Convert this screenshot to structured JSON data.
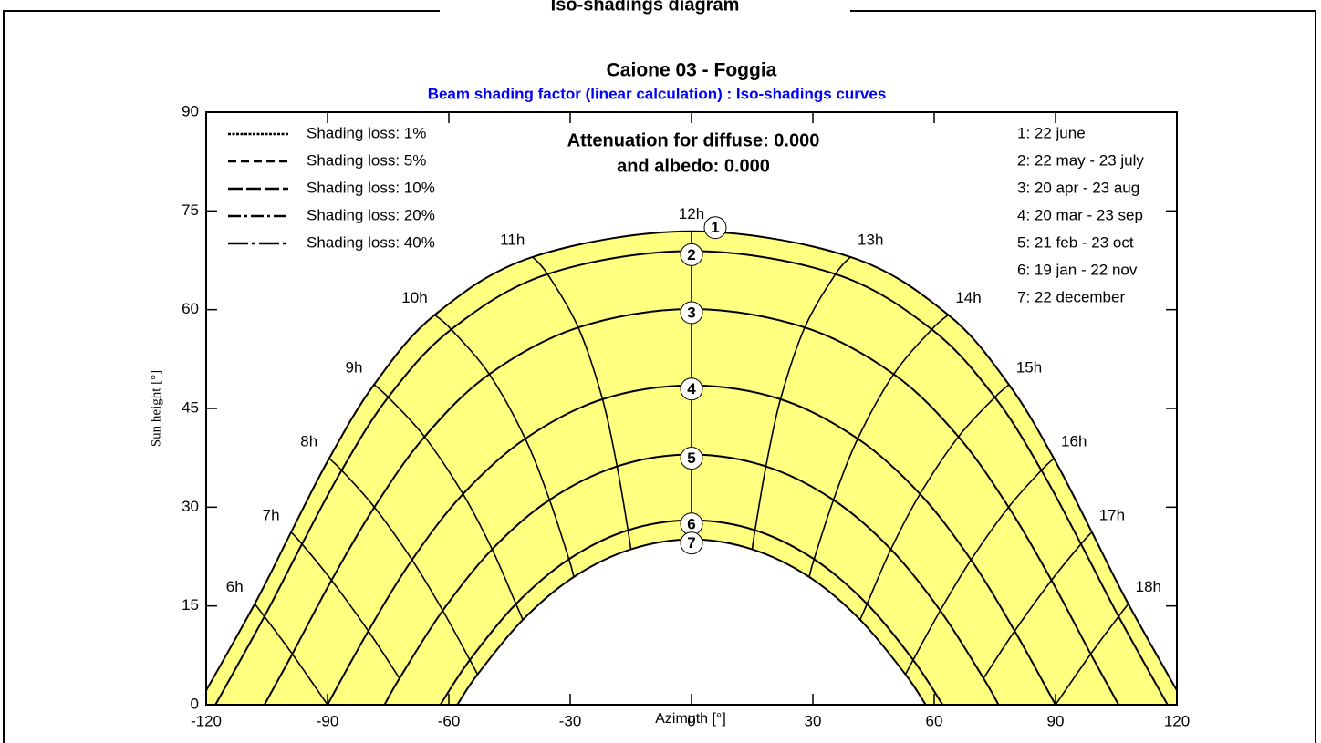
{
  "header": {
    "title": "Iso-shadings diagram"
  },
  "chart_data": {
    "type": "sunpath",
    "title": "Caione 03 - Foggia",
    "subtitle": "Beam shading factor (linear calculation) : Iso-shadings curves",
    "annotations": [
      "Attenuation for diffuse: 0.000",
      "and albedo: 0.000"
    ],
    "xlabel": "Azimuth [°]",
    "ylabel": "Sun height [°]",
    "xlim": [
      -120,
      120
    ],
    "ylim": [
      0,
      90
    ],
    "xticks": [
      -120,
      -90,
      -60,
      -30,
      0,
      30,
      60,
      90,
      120
    ],
    "yticks": [
      0,
      15,
      30,
      45,
      60,
      75,
      90
    ],
    "line_color": "#000000",
    "fill_color": "#ffff80",
    "shading_legend": [
      {
        "name": "Shading loss: 1%",
        "dash": "3,1.5"
      },
      {
        "name": "Shading loss: 5%",
        "dash": "9,5"
      },
      {
        "name": "Shading loss: 10%",
        "dash": "16,4"
      },
      {
        "name": "Shading loss: 20%",
        "dash": "14,4,3,4"
      },
      {
        "name": "Shading loss: 40%",
        "dash": "22,4,4,4"
      }
    ],
    "series": [
      {
        "name": "1: 22 june",
        "marker": "1",
        "x": [
          -122,
          -108.0,
          -99.0,
          -89.6,
          -78.5,
          -63.5,
          -39.3,
          0,
          39.3,
          63.5,
          78.5,
          89.6,
          99.0,
          108.0,
          122
        ],
        "values": [
          0,
          15.3,
          26.2,
          37.4,
          48.6,
          59.2,
          68.0,
          71.9,
          68.0,
          59.2,
          48.6,
          37.4,
          26.2,
          15.3,
          0
        ]
      },
      {
        "name": "2: 22 may - 23 july",
        "marker": "2",
        "x": [
          -117.7,
          -105.6,
          -96.3,
          -86.5,
          -75.0,
          -59.4,
          -35.6,
          0,
          35.6,
          59.4,
          75.0,
          86.5,
          96.3,
          105.6,
          117.7
        ],
        "values": [
          0,
          13.4,
          24.4,
          35.6,
          46.7,
          57.0,
          65.4,
          68.9,
          65.4,
          57.0,
          46.7,
          35.6,
          24.4,
          13.4,
          0
        ]
      },
      {
        "name": "3: 20 apr - 23 aug",
        "marker": "3",
        "x": [
          -105.6,
          -98.7,
          -89.0,
          -78.4,
          -66.0,
          -50.0,
          -28.0,
          0,
          28.0,
          50.0,
          66.0,
          78.4,
          89.0,
          98.7,
          105.6
        ],
        "values": [
          0,
          7.7,
          18.9,
          30.0,
          40.7,
          50.2,
          57.3,
          60.1,
          57.3,
          50.2,
          40.7,
          30.0,
          18.9,
          7.7,
          0
        ]
      },
      {
        "name": "4: 20 mar - 23 sep",
        "marker": "4",
        "x": [
          -90,
          -79.9,
          -69.1,
          -56.5,
          -41.1,
          -22.0,
          0,
          22.0,
          41.1,
          56.5,
          69.1,
          79.9,
          90
        ],
        "values": [
          0,
          11.2,
          22.0,
          32.0,
          40.4,
          46.4,
          48.5,
          46.4,
          40.4,
          32.0,
          22.0,
          11.2,
          0
        ]
      },
      {
        "name": "5: 21 feb - 23 oct",
        "marker": "5",
        "x": [
          -75.9,
          -72.2,
          -61.5,
          -49.3,
          -35.1,
          -18.4,
          0,
          18.4,
          35.1,
          49.3,
          61.5,
          72.2,
          75.9
        ],
        "values": [
          0,
          4.0,
          14.3,
          23.6,
          31.1,
          36.2,
          38.0,
          36.2,
          31.1,
          23.6,
          14.3,
          4.0,
          0
        ]
      },
      {
        "name": "6: 19 jan - 22 nov",
        "marker": "6",
        "x": [
          -62.1,
          -54.8,
          -43.4,
          -30.3,
          -15.7,
          0,
          15.7,
          30.3,
          43.4,
          54.8,
          62.1
        ],
        "values": [
          0,
          6.8,
          15.3,
          22.1,
          26.5,
          28.0,
          26.5,
          22.1,
          15.3,
          6.8,
          0
        ]
      },
      {
        "name": "7: 22 december",
        "marker": "7",
        "x": [
          -57.9,
          -52.9,
          -41.7,
          -29.1,
          -15.0,
          0,
          15.0,
          29.1,
          41.7,
          52.9,
          57.9
        ],
        "values": [
          0,
          4.6,
          12.9,
          19.4,
          23.6,
          25.1,
          23.6,
          19.4,
          12.9,
          4.6,
          0
        ]
      }
    ],
    "hour_lines": [
      {
        "label": "6h",
        "x": [
          -108.0,
          -105.6,
          -98.7,
          -90
        ],
        "values": [
          15.3,
          13.4,
          7.7,
          0
        ]
      },
      {
        "label": "7h",
        "x": [
          -99.0,
          -96.3,
          -89.0,
          -79.9,
          -72.2
        ],
        "values": [
          26.2,
          24.4,
          18.9,
          11.2,
          4.0
        ]
      },
      {
        "label": "8h",
        "x": [
          -89.6,
          -86.5,
          -78.4,
          -69.1,
          -61.5,
          -54.8,
          -52.9
        ],
        "values": [
          37.4,
          35.6,
          30.0,
          22.0,
          14.3,
          6.8,
          4.6
        ]
      },
      {
        "label": "9h",
        "x": [
          -78.5,
          -75.0,
          -66.0,
          -56.5,
          -49.3,
          -43.4,
          -41.7
        ],
        "values": [
          48.6,
          46.7,
          40.7,
          32.0,
          23.6,
          15.3,
          12.9
        ]
      },
      {
        "label": "10h",
        "x": [
          -63.5,
          -59.4,
          -50.0,
          -41.1,
          -35.1,
          -30.3,
          -29.1
        ],
        "values": [
          59.2,
          57.0,
          50.2,
          40.4,
          31.1,
          22.1,
          19.4
        ]
      },
      {
        "label": "11h",
        "x": [
          -39.3,
          -35.6,
          -28.0,
          -22.0,
          -18.4,
          -15.7,
          -15.0
        ],
        "values": [
          68.0,
          65.4,
          57.3,
          46.4,
          36.2,
          26.5,
          23.6
        ]
      },
      {
        "label": "12h",
        "x": [
          0,
          0,
          0,
          0,
          0,
          0,
          0
        ],
        "values": [
          71.9,
          68.9,
          60.1,
          48.5,
          38.0,
          28.0,
          25.1
        ]
      },
      {
        "label": "13h",
        "x": [
          39.3,
          35.6,
          28.0,
          22.0,
          18.4,
          15.7,
          15.0
        ],
        "values": [
          68.0,
          65.4,
          57.3,
          46.4,
          36.2,
          26.5,
          23.6
        ]
      },
      {
        "label": "14h",
        "x": [
          63.5,
          59.4,
          50.0,
          41.1,
          35.1,
          30.3,
          29.1
        ],
        "values": [
          59.2,
          57.0,
          50.2,
          40.4,
          31.1,
          22.1,
          19.4
        ]
      },
      {
        "label": "15h",
        "x": [
          78.5,
          75.0,
          66.0,
          56.5,
          49.3,
          43.4,
          41.7
        ],
        "values": [
          48.6,
          46.7,
          40.7,
          32.0,
          23.6,
          15.3,
          12.9
        ]
      },
      {
        "label": "16h",
        "x": [
          89.6,
          86.5,
          78.4,
          69.1,
          61.5,
          54.8,
          52.9
        ],
        "values": [
          37.4,
          35.6,
          30.0,
          22.0,
          14.3,
          6.8,
          4.6
        ]
      },
      {
        "label": "17h",
        "x": [
          99.0,
          96.3,
          89.0,
          79.9,
          72.2
        ],
        "values": [
          26.2,
          24.4,
          18.9,
          11.2,
          4.0
        ]
      },
      {
        "label": "18h",
        "x": [
          108.0,
          105.6,
          98.7,
          90
        ],
        "values": [
          15.3,
          13.4,
          7.7,
          0
        ]
      }
    ]
  }
}
